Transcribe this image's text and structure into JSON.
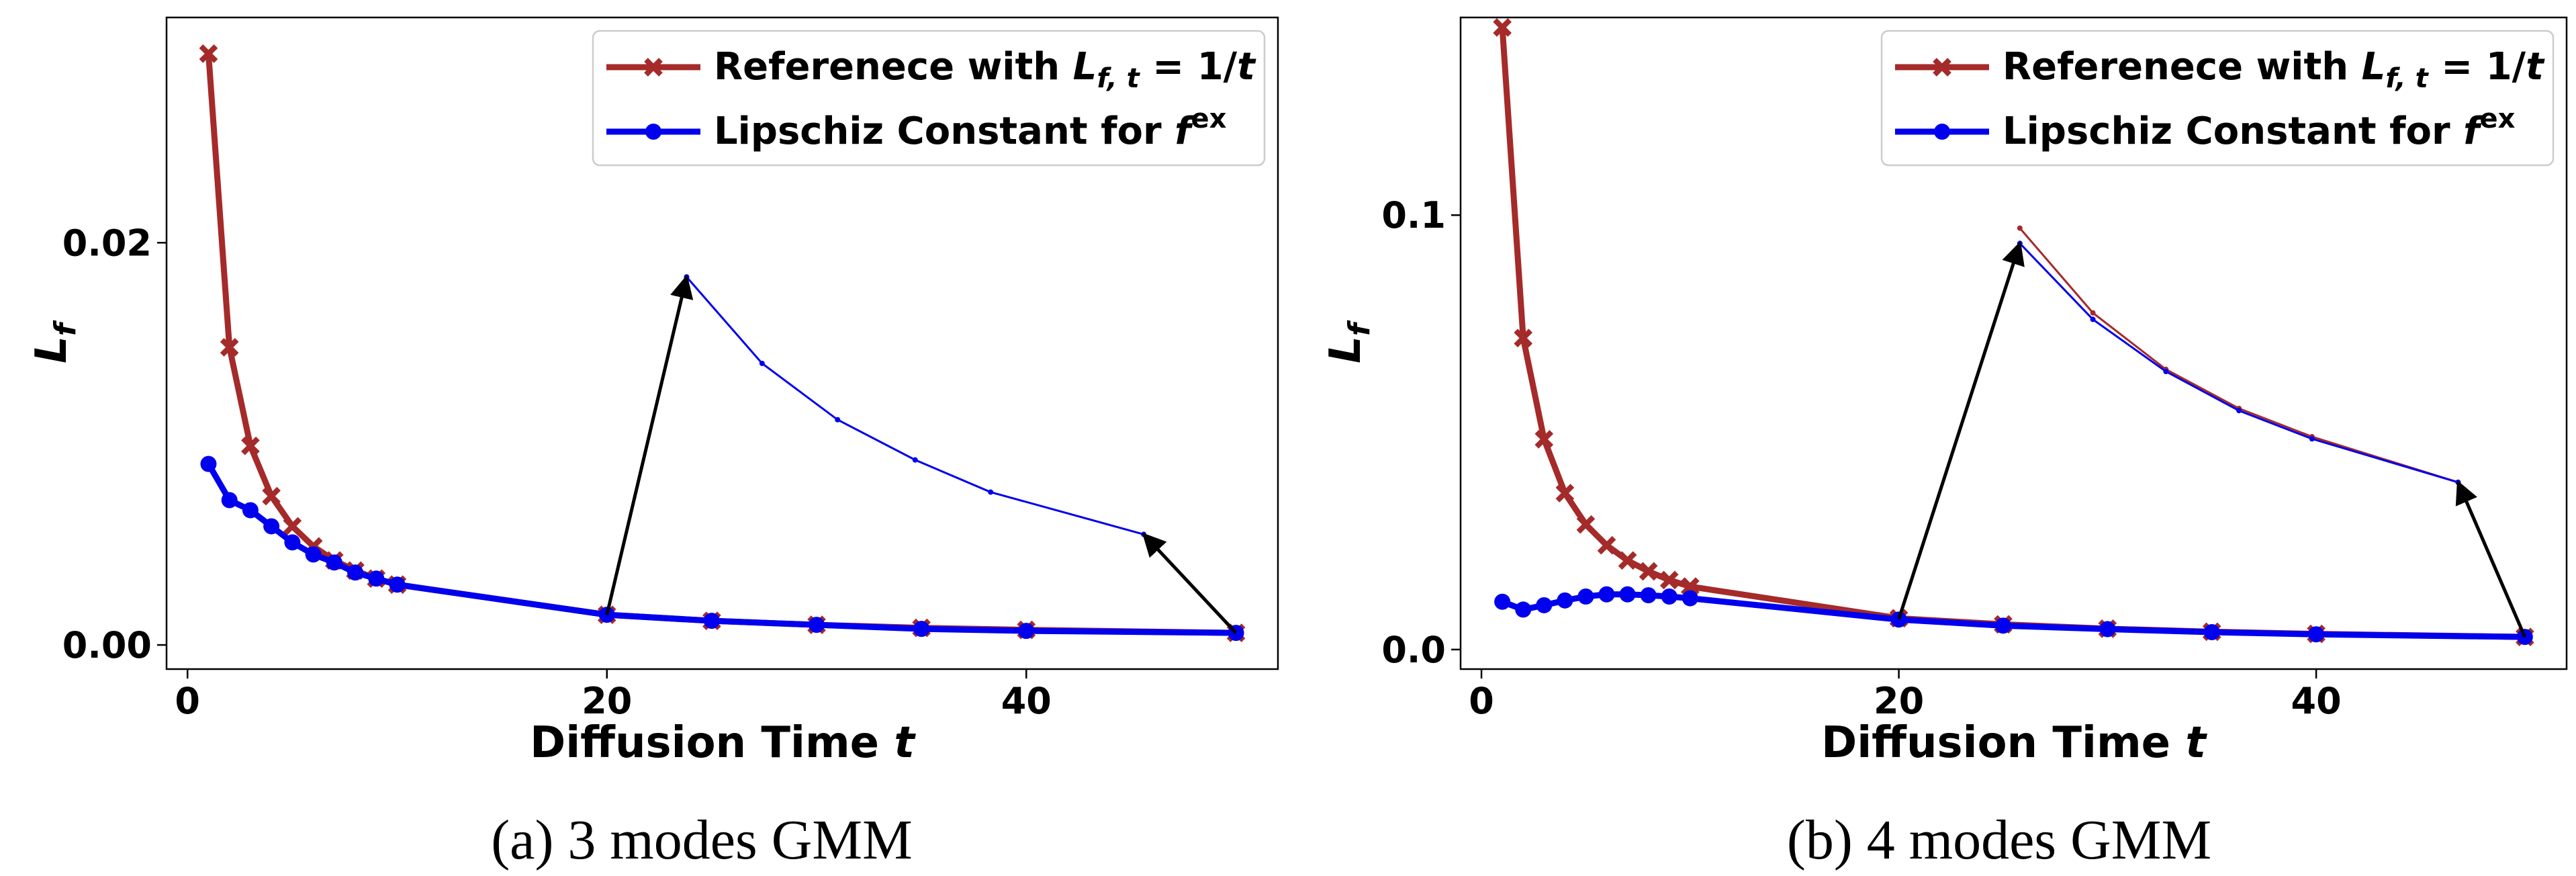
{
  "chart_data": [
    {
      "type": "line",
      "caption": "(a) 3 modes GMM",
      "xlabel": "Diffusion Time",
      "xlabel_var": "t",
      "ylabel_var": "L",
      "ylabel_sub": "f",
      "xlim": [
        -1,
        52
      ],
      "ylim": [
        -0.0012,
        0.0312
      ],
      "xticks": [
        0,
        20,
        40
      ],
      "xtick_labels": [
        "0",
        "20",
        "40"
      ],
      "yticks": [
        0.0,
        0.02
      ],
      "ytick_labels": [
        "0.00",
        "0.02"
      ],
      "legend_position": "top-right",
      "legend": [
        {
          "text": "Referenece with ",
          "math": "L",
          "math_sub": "f, t",
          "suffix": " = 1/",
          "suffix_var": "t",
          "color": "#a52a2a",
          "marker": "x"
        },
        {
          "text": "Lipschiz Constant for ",
          "math": "f",
          "math_sup": "ex",
          "color": "#0000ee",
          "marker": "o"
        }
      ],
      "series": [
        {
          "name": "Referenece with L_{f,t} = 1/t",
          "color": "#a52a2a",
          "marker": "x",
          "x": [
            1,
            2,
            3,
            4,
            5,
            6,
            7,
            8,
            9,
            10,
            20,
            25,
            30,
            35,
            40,
            50
          ],
          "y": [
            0.0294,
            0.0148,
            0.0099,
            0.0074,
            0.0059,
            0.0049,
            0.0042,
            0.0037,
            0.0033,
            0.003,
            0.0015,
            0.0012,
            0.001,
            0.00085,
            0.00075,
            0.0006
          ]
        },
        {
          "name": "Lipschiz Constant for f^ex",
          "color": "#0000ee",
          "marker": "o",
          "x": [
            1,
            2,
            3,
            4,
            5,
            6,
            7,
            8,
            9,
            10,
            20,
            25,
            30,
            35,
            40,
            50
          ],
          "y": [
            0.009,
            0.0072,
            0.0067,
            0.0059,
            0.0051,
            0.0045,
            0.0041,
            0.0036,
            0.0033,
            0.003,
            0.0015,
            0.0012,
            0.001,
            0.0008,
            0.0007,
            0.0006
          ]
        }
      ],
      "zoom_series": [
        {
          "color": "#a52a2a",
          "x": [
            23.8
          ],
          "y": [
            0.0183
          ]
        },
        {
          "color": "#0000ee",
          "x": [
            23.8,
            27.4,
            31.0,
            34.7,
            38.3,
            45.6
          ],
          "y": [
            0.0183,
            0.014,
            0.0112,
            0.0092,
            0.0076,
            0.0055
          ]
        }
      ],
      "arrows": [
        {
          "from": [
            20,
            0.0015
          ],
          "to": [
            23.8,
            0.0183
          ]
        },
        {
          "from": [
            50,
            0.0006
          ],
          "to": [
            45.6,
            0.0055
          ]
        }
      ]
    },
    {
      "type": "line",
      "caption": "(b) 4 modes GMM",
      "xlabel": "Diffusion Time",
      "xlabel_var": "t",
      "ylabel_var": "L",
      "ylabel_sub": "f",
      "xlim": [
        -1,
        52
      ],
      "ylim": [
        -0.0045,
        0.1455
      ],
      "xticks": [
        0,
        20,
        40
      ],
      "xtick_labels": [
        "0",
        "20",
        "40"
      ],
      "yticks": [
        0.0,
        0.1
      ],
      "ytick_labels": [
        "0.0",
        "0.1"
      ],
      "legend_position": "top-right",
      "legend": [
        {
          "text": "Referenece with ",
          "math": "L",
          "math_sub": "f, t",
          "suffix": " = 1/",
          "suffix_var": "t",
          "color": "#a52a2a",
          "marker": "x"
        },
        {
          "text": "Lipschiz Constant for ",
          "math": "f",
          "math_sup": "ex",
          "color": "#0000ee",
          "marker": "o"
        }
      ],
      "series": [
        {
          "name": "Referenece with L_{f,t} = 1/t",
          "color": "#a52a2a",
          "marker": "x",
          "x": [
            1,
            2,
            3,
            4,
            5,
            6,
            7,
            8,
            9,
            10,
            20,
            25,
            30,
            35,
            40,
            50
          ],
          "y": [
            0.1432,
            0.0717,
            0.0484,
            0.036,
            0.0288,
            0.024,
            0.0205,
            0.018,
            0.016,
            0.0145,
            0.0072,
            0.0058,
            0.0048,
            0.0041,
            0.0036,
            0.0029
          ]
        },
        {
          "name": "Lipschiz Constant for f^ex",
          "color": "#0000ee",
          "marker": "o",
          "x": [
            1,
            2,
            3,
            4,
            5,
            6,
            7,
            8,
            9,
            10,
            20,
            25,
            30,
            35,
            40,
            50
          ],
          "y": [
            0.011,
            0.0092,
            0.0102,
            0.0113,
            0.0122,
            0.0127,
            0.0127,
            0.0125,
            0.0122,
            0.0118,
            0.0069,
            0.0055,
            0.0047,
            0.004,
            0.0035,
            0.0029
          ]
        }
      ],
      "zoom_series": [
        {
          "color": "#a52a2a",
          "x": [
            25.8,
            29.3,
            32.8,
            36.3,
            39.8,
            46.8
          ],
          "y": [
            0.097,
            0.0775,
            0.0645,
            0.0555,
            0.049,
            0.0385
          ]
        },
        {
          "color": "#0000ee",
          "x": [
            25.8,
            29.3,
            32.8,
            36.3,
            39.8,
            46.8
          ],
          "y": [
            0.0935,
            0.076,
            0.064,
            0.055,
            0.0485,
            0.0385
          ]
        }
      ],
      "arrows": [
        {
          "from": [
            20,
            0.007
          ],
          "to": [
            25.8,
            0.0935
          ]
        },
        {
          "from": [
            50,
            0.0029
          ],
          "to": [
            46.8,
            0.0385
          ]
        }
      ]
    }
  ]
}
